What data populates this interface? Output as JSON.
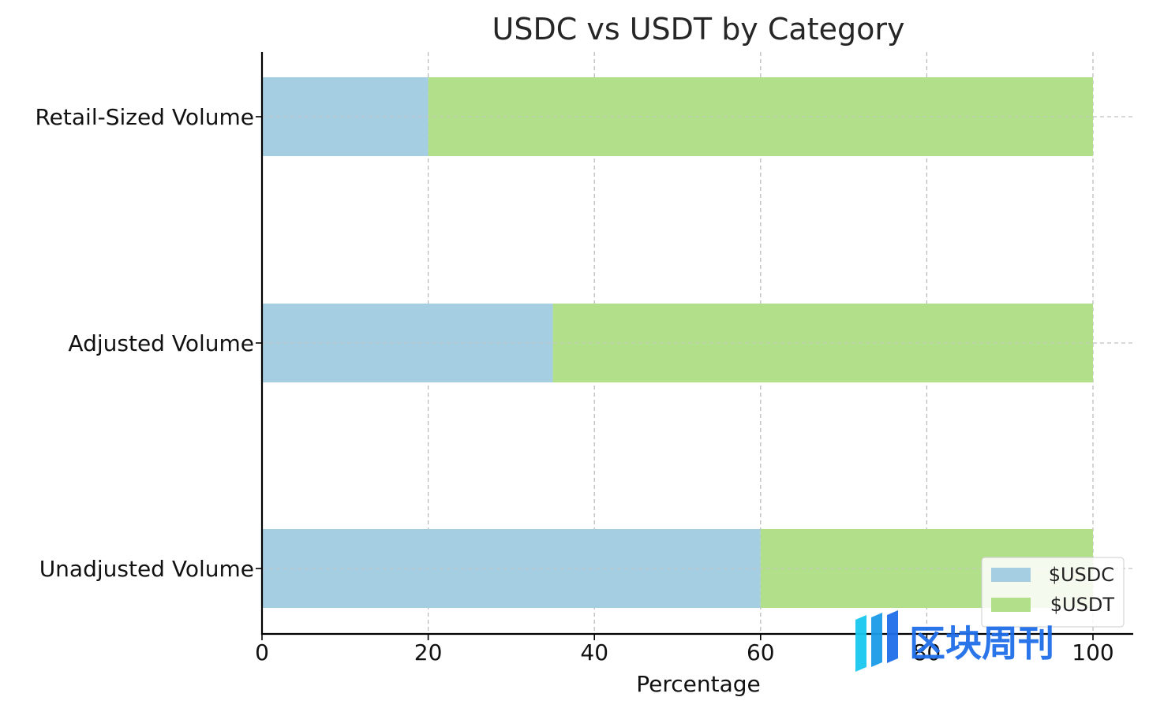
{
  "chart_data": {
    "type": "bar",
    "orientation": "horizontal",
    "stacked": true,
    "title": "USDC vs USDT by Category",
    "xlabel": "Percentage",
    "ylabel": "",
    "categories": [
      "Unadjusted Volume",
      "Adjusted Volume",
      "Retail-Sized Volume"
    ],
    "series": [
      {
        "name": "$USDC",
        "values": [
          60,
          35,
          20
        ],
        "color": "#a6cee3"
      },
      {
        "name": "$USDT",
        "values": [
          40,
          65,
          80
        ],
        "color": "#b2df8a"
      }
    ],
    "xlim": [
      0,
      100
    ],
    "xticks": [
      "0",
      "20",
      "40",
      "60",
      "80",
      "100"
    ],
    "grid": true,
    "legend": "lower-right"
  },
  "watermark": {
    "text": "区块周刊",
    "icon": "bar-logo-icon"
  }
}
